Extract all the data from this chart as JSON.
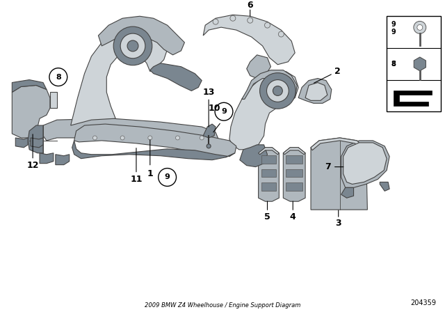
{
  "title": "2009 BMW Z4 Wheelhouse / Engine Support Diagram",
  "part_number": "204359",
  "bg": "#ffffff",
  "pc": "#b0b8be",
  "pcd": "#7a8690",
  "pcl": "#ced4d8",
  "pce": "#4a5560"
}
